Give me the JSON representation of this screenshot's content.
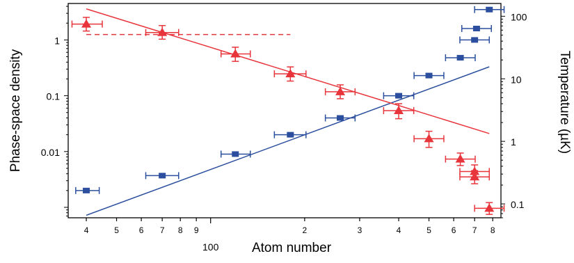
{
  "chart_data": {
    "type": "scatter",
    "x_scale": "log",
    "y_left_scale": "log",
    "y_right_scale": "log",
    "xlabel": "Atom number",
    "xlim": [
      35,
      850
    ],
    "ylabel_left": "Phase-space density",
    "ylim_left": [
      0.00065,
      4.5
    ],
    "ylabel_right": "Temperature (µK)",
    "ylim_right": [
      0.06,
      160
    ],
    "x_major_label": "100",
    "x_ticks": [
      {
        "value": 40,
        "label": "4"
      },
      {
        "value": 50,
        "label": "5"
      },
      {
        "value": 60,
        "label": "6"
      },
      {
        "value": 70,
        "label": "7"
      },
      {
        "value": 80,
        "label": "8"
      },
      {
        "value": 90,
        "label": "9"
      },
      {
        "value": 100,
        "label": ""
      },
      {
        "value": 200,
        "label": "2"
      },
      {
        "value": 300,
        "label": "3"
      },
      {
        "value": 400,
        "label": "4"
      },
      {
        "value": 500,
        "label": "5"
      },
      {
        "value": 600,
        "label": "6"
      },
      {
        "value": 700,
        "label": "7"
      },
      {
        "value": 800,
        "label": "8"
      }
    ],
    "y_left_ticks": [
      {
        "value": 0.01,
        "label": "0.01"
      },
      {
        "value": 0.1,
        "label": "0.1"
      },
      {
        "value": 1,
        "label": "1"
      }
    ],
    "y_right_ticks": [
      {
        "value": 0.1,
        "label": "0.1"
      },
      {
        "value": 1,
        "label": "1"
      },
      {
        "value": 10,
        "label": "10"
      },
      {
        "value": 100,
        "label": "100"
      }
    ],
    "series": [
      {
        "axis": "left",
        "marker": "square",
        "color": "#2b4f9e",
        "points": [
          {
            "x": 40,
            "y": 0.002,
            "xerr_lo": 37,
            "xerr_hi": 44
          },
          {
            "x": 70,
            "y": 0.0037,
            "xerr_lo": 62,
            "xerr_hi": 79
          },
          {
            "x": 120,
            "y": 0.009,
            "xerr_lo": 108,
            "xerr_hi": 134
          },
          {
            "x": 180,
            "y": 0.02,
            "xerr_lo": 160,
            "xerr_hi": 202
          },
          {
            "x": 260,
            "y": 0.04,
            "xerr_lo": 233,
            "xerr_hi": 290
          },
          {
            "x": 400,
            "y": 0.1,
            "xerr_lo": 358,
            "xerr_hi": 447
          },
          {
            "x": 500,
            "y": 0.23,
            "xerr_lo": 448,
            "xerr_hi": 558
          },
          {
            "x": 630,
            "y": 0.48,
            "xerr_lo": 565,
            "xerr_hi": 703
          },
          {
            "x": 700,
            "y": 1.0,
            "xerr_lo": 628,
            "xerr_hi": 780
          },
          {
            "x": 710,
            "y": 1.6,
            "xerr_lo": 637,
            "xerr_hi": 792
          },
          {
            "x": 780,
            "y": 3.5,
            "xerr_lo": 700,
            "xerr_hi": 870
          }
        ]
      },
      {
        "axis": "right",
        "marker": "triangle",
        "color": "#e8343b",
        "points": [
          {
            "x": 40,
            "y": 75,
            "yerr_lo": 58,
            "yerr_hi": 96,
            "xerr_lo": 36,
            "xerr_hi": 45
          },
          {
            "x": 70,
            "y": 55,
            "yerr_lo": 43,
            "yerr_hi": 71,
            "xerr_lo": 62,
            "xerr_hi": 79
          },
          {
            "x": 120,
            "y": 25,
            "yerr_lo": 19,
            "yerr_hi": 32,
            "xerr_lo": 108,
            "xerr_hi": 134
          },
          {
            "x": 180,
            "y": 12,
            "yerr_lo": 9.2,
            "yerr_hi": 15.5,
            "xerr_lo": 160,
            "xerr_hi": 202
          },
          {
            "x": 260,
            "y": 6.2,
            "yerr_lo": 4.8,
            "yerr_hi": 8.0,
            "xerr_lo": 233,
            "xerr_hi": 290
          },
          {
            "x": 400,
            "y": 3.1,
            "yerr_lo": 2.3,
            "yerr_hi": 4.0,
            "xerr_lo": 358,
            "xerr_hi": 447
          },
          {
            "x": 500,
            "y": 1.1,
            "yerr_lo": 0.8,
            "yerr_hi": 1.45,
            "xerr_lo": 448,
            "xerr_hi": 558
          },
          {
            "x": 630,
            "y": 0.52,
            "yerr_lo": 0.41,
            "yerr_hi": 0.65,
            "xerr_lo": 565,
            "xerr_hi": 703
          },
          {
            "x": 700,
            "y": 0.33,
            "yerr_lo": 0.26,
            "yerr_hi": 0.42,
            "xerr_lo": 628,
            "xerr_hi": 780
          },
          {
            "x": 700,
            "y": 0.27,
            "yerr_lo": 0.21,
            "yerr_hi": 0.34,
            "xerr_lo": 628,
            "xerr_hi": 780
          },
          {
            "x": 780,
            "y": 0.085,
            "yerr_lo": 0.068,
            "yerr_hi": 0.105,
            "xerr_lo": 700,
            "xerr_hi": 870
          }
        ]
      }
    ],
    "fit_lines": [
      {
        "axis": "left",
        "color": "#2b4f9e",
        "style": "solid",
        "x": [
          40,
          780
        ],
        "y": [
          0.00072,
          0.33
        ]
      },
      {
        "axis": "left",
        "color": "#e8343b",
        "style": "solid",
        "x": [
          40,
          780
        ],
        "y": [
          3.6,
          0.021
        ]
      },
      {
        "axis": "left",
        "color": "#e8343b",
        "style": "dashed",
        "x": [
          40,
          180
        ],
        "y": [
          1.25,
          1.25
        ]
      }
    ]
  }
}
